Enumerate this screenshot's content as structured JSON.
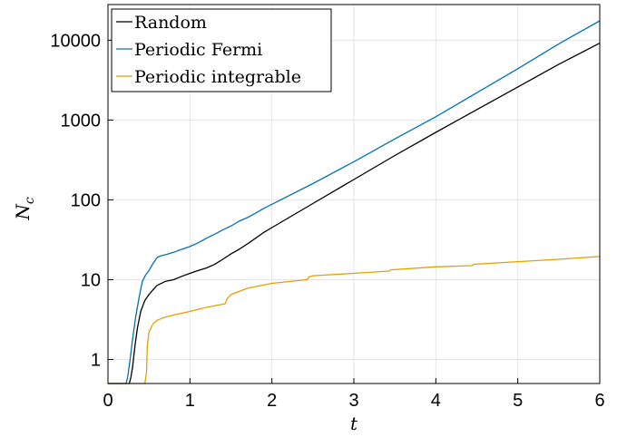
{
  "chart_data": {
    "type": "line",
    "title": "",
    "xlabel": "t",
    "ylabel": "N",
    "ylabel_subscript": "c",
    "xlim": [
      0,
      6
    ],
    "ylim": [
      0.5,
      28000
    ],
    "y_scale": "log",
    "grid": true,
    "legend_position": "top-left",
    "x_ticks": [
      "0",
      "1",
      "2",
      "3",
      "4",
      "5",
      "6"
    ],
    "y_ticks": [
      {
        "value": 1,
        "label": "1"
      },
      {
        "value": 10,
        "label": "10"
      },
      {
        "value": 100,
        "label": "100"
      },
      {
        "value": 1000,
        "label": "1000"
      },
      {
        "value": 10000,
        "label": "10000"
      }
    ],
    "series": [
      {
        "name": "Random",
        "color": "#000000",
        "x": [
          0,
          0.26,
          0.28,
          0.3,
          0.33,
          0.36,
          0.4,
          0.45,
          0.5,
          0.55,
          0.6,
          0.7,
          0.8,
          0.9,
          1.0,
          1.1,
          1.2,
          1.3,
          1.4,
          1.5,
          1.6,
          1.7,
          1.8,
          1.9,
          2.0,
          2.5,
          3.0,
          3.5,
          4.0,
          4.5,
          5.0,
          5.5,
          6.0
        ],
        "y": [
          0.5,
          0.5,
          0.6,
          0.8,
          1.5,
          2.5,
          4.0,
          5.5,
          6.5,
          7.5,
          8.5,
          9.5,
          10.0,
          11.0,
          12.0,
          13.0,
          14.0,
          15.5,
          18.0,
          21.0,
          24.0,
          28.0,
          33.0,
          39.0,
          45.0,
          90.0,
          180.0,
          360.0,
          700.0,
          1350.0,
          2600.0,
          5000.0,
          9200.0
        ]
      },
      {
        "name": "Periodic Fermi",
        "color": "#0072b2",
        "x": [
          0,
          0.22,
          0.24,
          0.27,
          0.3,
          0.34,
          0.38,
          0.42,
          0.46,
          0.5,
          0.55,
          0.6,
          0.65,
          0.7,
          0.8,
          0.9,
          1.0,
          1.1,
          1.2,
          1.3,
          1.4,
          1.5,
          1.6,
          1.7,
          1.8,
          1.9,
          2.0,
          2.5,
          3.0,
          3.5,
          4.0,
          4.5,
          5.0,
          5.5,
          6.0
        ],
        "y": [
          0.5,
          0.5,
          0.6,
          1.0,
          1.8,
          3.5,
          6.0,
          9.5,
          11.5,
          13.0,
          16.0,
          19.0,
          20.0,
          20.5,
          22.0,
          24.0,
          26.0,
          29.0,
          33.0,
          37.0,
          42.0,
          47.0,
          54.0,
          60.0,
          68.0,
          78.0,
          88.0,
          160.0,
          300.0,
          580.0,
          1100.0,
          2200.0,
          4400.0,
          9000.0,
          17500.0
        ]
      },
      {
        "name": "Periodic integrable",
        "color": "#e69f00",
        "x": [
          0,
          0.45,
          0.47,
          0.48,
          0.5,
          0.55,
          0.6,
          0.7,
          0.8,
          1.0,
          1.2,
          1.43,
          1.45,
          1.5,
          1.7,
          2.0,
          2.43,
          2.45,
          2.5,
          3.0,
          3.43,
          3.45,
          4.0,
          4.44,
          4.46,
          5.0,
          5.5,
          6.0
        ],
        "y": [
          0.5,
          0.5,
          0.7,
          1.5,
          2.2,
          2.8,
          3.1,
          3.4,
          3.6,
          4.0,
          4.5,
          5.0,
          5.7,
          6.5,
          7.8,
          9.0,
          10.0,
          10.8,
          11.2,
          12.0,
          12.8,
          13.3,
          14.5,
          15.0,
          15.6,
          16.8,
          18.0,
          19.5
        ]
      }
    ]
  }
}
